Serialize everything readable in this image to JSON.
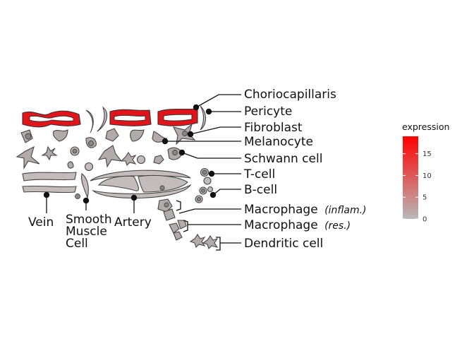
{
  "diagram": {
    "labels_right": [
      {
        "id": "choriocapillaris",
        "text": "Choriocapillaris"
      },
      {
        "id": "pericyte",
        "text": "Pericyte"
      },
      {
        "id": "fibroblast",
        "text": "Fibroblast"
      },
      {
        "id": "melanocyte",
        "text": "Melanocyte"
      },
      {
        "id": "schwann",
        "text": "Schwann cell"
      },
      {
        "id": "tcell",
        "text": "T-cell"
      },
      {
        "id": "bcell",
        "text": "B-cell"
      },
      {
        "id": "macro_inflam",
        "text": "Macrophage",
        "qualifier": "(inflam.)"
      },
      {
        "id": "macro_res",
        "text": "Macrophage",
        "qualifier": "(res.)"
      },
      {
        "id": "dendritic",
        "text": "Dendritic cell"
      }
    ],
    "labels_bottom": {
      "vein": "Vein",
      "smooth_muscle": [
        "Smooth",
        "Muscle",
        "Cell"
      ],
      "artery": "Artery"
    }
  },
  "legend": {
    "title": "expression",
    "ticks": [
      "15",
      "10",
      "5",
      "0"
    ],
    "min": 0,
    "max": 19,
    "tick_values": [
      15,
      10,
      5,
      0
    ],
    "colors": {
      "low": "#b9b9b9",
      "high": "#ff0000"
    }
  },
  "colors": {
    "highlight": "#e2141a",
    "cell_fill": "#b3aaaa",
    "outline": "#444444"
  }
}
